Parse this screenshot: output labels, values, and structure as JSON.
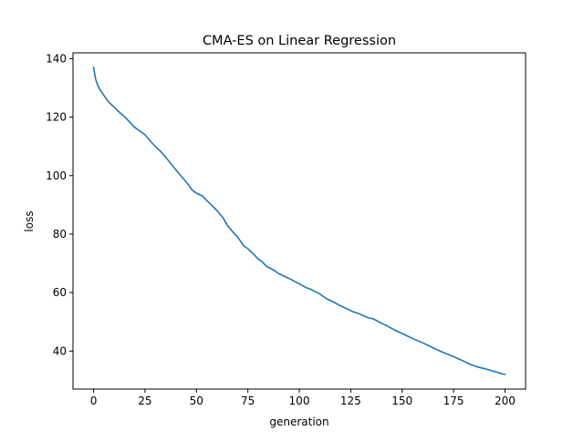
{
  "chart_data": {
    "type": "line",
    "title": "CMA-ES on Linear Regression",
    "xlabel": "generation",
    "ylabel": "loss",
    "xlim": [
      -10,
      210
    ],
    "ylim": [
      27,
      142
    ],
    "xticks": [
      0,
      25,
      50,
      75,
      100,
      125,
      150,
      175,
      200
    ],
    "yticks": [
      40,
      60,
      80,
      100,
      120,
      140
    ],
    "grid": false,
    "series": [
      {
        "name": "loss",
        "color": "#1f77b4",
        "x": [
          0,
          1,
          2,
          3,
          4,
          5,
          6,
          7,
          8,
          10,
          12,
          15,
          18,
          20,
          22,
          25,
          28,
          30,
          33,
          36,
          40,
          43,
          46,
          48,
          50,
          53,
          55,
          58,
          60,
          63,
          65,
          68,
          70,
          73,
          75,
          78,
          80,
          82,
          84,
          86,
          88,
          90,
          93,
          96,
          100,
          103,
          106,
          110,
          113,
          116,
          120,
          123,
          126,
          130,
          133,
          136,
          140,
          143,
          146,
          150,
          153,
          156,
          160,
          163,
          166,
          170,
          173,
          176,
          180,
          183,
          186,
          190,
          193,
          196,
          198,
          200
        ],
        "values": [
          137,
          133,
          131,
          129.5,
          128.5,
          127.5,
          126.5,
          125.5,
          124.7,
          123.5,
          122,
          120.2,
          118,
          116.5,
          115.5,
          114,
          111.5,
          110,
          108,
          105.5,
          102,
          99.5,
          97,
          95,
          94,
          93,
          91.5,
          89.5,
          88,
          85.5,
          83,
          80.5,
          79,
          76,
          75,
          73,
          71.5,
          70.5,
          69,
          68.3,
          67.5,
          66.5,
          65.5,
          64.5,
          63,
          61.8,
          61,
          59.5,
          58,
          57,
          55.5,
          54.5,
          53.5,
          52.5,
          51.5,
          51,
          49.5,
          48.5,
          47.3,
          46,
          45,
          44,
          42.8,
          41.8,
          40.8,
          39.5,
          38.7,
          37.8,
          36.5,
          35.5,
          34.7,
          34,
          33.4,
          32.8,
          32.3,
          32
        ]
      }
    ]
  }
}
